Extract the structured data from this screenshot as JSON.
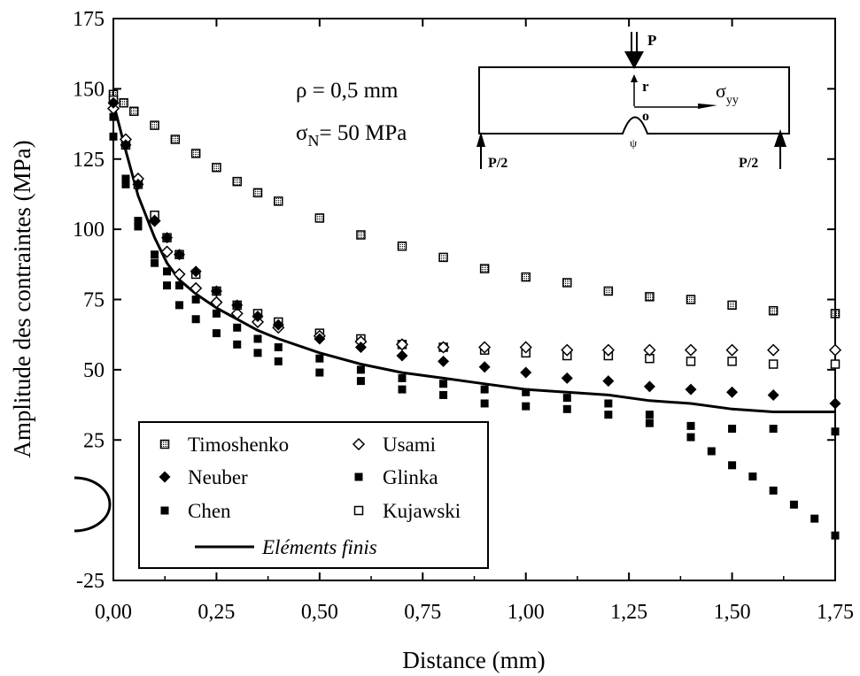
{
  "chart_data": {
    "type": "scatter",
    "title": "",
    "xlabel": "Distance (mm)",
    "ylabel": "Amplitude des contraintes  (MPa)",
    "xlim": [
      0,
      1.75
    ],
    "ylim": [
      -25,
      175
    ],
    "xticks": [
      0,
      0.25,
      0.5,
      0.75,
      1.0,
      1.25,
      1.5,
      1.75
    ],
    "xtick_labels": [
      "0,00",
      "0,25",
      "0,50",
      "0,75",
      "1,00",
      "1,25",
      "1,50",
      "1,75"
    ],
    "yticks": [
      -25,
      25,
      50,
      75,
      100,
      125,
      150,
      175
    ],
    "ytick_labels": [
      "-25",
      "25",
      "50",
      "75",
      "100",
      "125",
      "150",
      "175"
    ],
    "grid": false,
    "legend_position": "bottom-left",
    "annotations": {
      "rho": "ρ = 0,5 mm",
      "sigma_n_symbol": "σ",
      "sigma_n_sub": "N",
      "sigma_n_value": "= 50 MPa"
    },
    "inset": {
      "load_P": "P",
      "support_left": "P/2",
      "support_right": "P/2",
      "r_label": "r",
      "o_label": "o",
      "psi_label": "ψ",
      "sigma_label": "σ",
      "sigma_sub": "yy"
    },
    "series": [
      {
        "name": "Timoshenko",
        "marker": "dotted-square",
        "x": [
          0.0,
          0.025,
          0.05,
          0.1,
          0.15,
          0.2,
          0.25,
          0.3,
          0.35,
          0.4,
          0.5,
          0.6,
          0.7,
          0.8,
          0.9,
          1.0,
          1.1,
          1.2,
          1.3,
          1.4,
          1.5,
          1.6,
          1.75
        ],
        "y": [
          148,
          145,
          142,
          137,
          132,
          127,
          122,
          117,
          113,
          110,
          104,
          98,
          94,
          90,
          86,
          83,
          81,
          78,
          76,
          75,
          73,
          71,
          70
        ]
      },
      {
        "name": "Usami",
        "marker": "open-diamond",
        "x": [
          0.0,
          0.03,
          0.06,
          0.1,
          0.13,
          0.16,
          0.2,
          0.25,
          0.3,
          0.35,
          0.4,
          0.5,
          0.6,
          0.7,
          0.8,
          0.9,
          1.0,
          1.1,
          1.2,
          1.3,
          1.4,
          1.5,
          1.6,
          1.75
        ],
        "y": [
          143,
          132,
          118,
          103,
          92,
          84,
          79,
          74,
          70,
          67,
          65,
          62,
          60,
          59,
          58,
          58,
          58,
          57,
          57,
          57,
          57,
          57,
          57,
          57
        ]
      },
      {
        "name": "Neuber",
        "marker": "filled-diamond",
        "x": [
          0.0,
          0.03,
          0.06,
          0.1,
          0.13,
          0.16,
          0.2,
          0.25,
          0.3,
          0.35,
          0.4,
          0.5,
          0.6,
          0.7,
          0.8,
          0.9,
          1.0,
          1.1,
          1.2,
          1.3,
          1.4,
          1.5,
          1.6,
          1.75
        ],
        "y": [
          145,
          130,
          116,
          103,
          97,
          91,
          85,
          78,
          73,
          69,
          66,
          61,
          58,
          55,
          53,
          51,
          49,
          47,
          46,
          44,
          43,
          42,
          41,
          38
        ]
      },
      {
        "name": "Glinka",
        "marker": "filled-square",
        "x": [
          0.0,
          0.03,
          0.06,
          0.1,
          0.13,
          0.16,
          0.2,
          0.25,
          0.3,
          0.35,
          0.4,
          0.5,
          0.6,
          0.7,
          0.8,
          0.9,
          1.0,
          1.1,
          1.2,
          1.3,
          1.4,
          1.45,
          1.5,
          1.55,
          1.6,
          1.65,
          1.7,
          1.75
        ],
        "y": [
          133,
          116,
          101,
          88,
          80,
          73,
          68,
          63,
          59,
          56,
          53,
          49,
          46,
          43,
          41,
          38,
          37,
          36,
          34,
          31,
          26,
          21,
          16,
          12,
          7,
          2,
          -3,
          -9
        ]
      },
      {
        "name": "Chen",
        "marker": "filled-square",
        "x": [
          0.0,
          0.03,
          0.06,
          0.1,
          0.13,
          0.16,
          0.2,
          0.25,
          0.3,
          0.35,
          0.4,
          0.5,
          0.6,
          0.7,
          0.8,
          0.9,
          1.0,
          1.1,
          1.2,
          1.3,
          1.4,
          1.5,
          1.6,
          1.75
        ],
        "y": [
          140,
          118,
          103,
          91,
          85,
          80,
          75,
          70,
          65,
          61,
          58,
          54,
          50,
          47,
          45,
          43,
          42,
          40,
          38,
          34,
          30,
          29,
          29,
          28
        ]
      },
      {
        "name": "Kujawski",
        "marker": "open-square",
        "x": [
          0.0,
          0.03,
          0.06,
          0.1,
          0.13,
          0.16,
          0.2,
          0.25,
          0.3,
          0.35,
          0.4,
          0.5,
          0.6,
          0.7,
          0.8,
          0.9,
          1.0,
          1.1,
          1.2,
          1.3,
          1.4,
          1.5,
          1.6,
          1.75
        ],
        "y": [
          146,
          130,
          116,
          105,
          97,
          91,
          84,
          78,
          73,
          70,
          67,
          63,
          61,
          59,
          58,
          57,
          56,
          55,
          55,
          54,
          53,
          53,
          52,
          52
        ]
      },
      {
        "name": "Eléments finis",
        "marker": "line",
        "x": [
          0.0,
          0.03,
          0.06,
          0.1,
          0.13,
          0.16,
          0.2,
          0.25,
          0.3,
          0.35,
          0.4,
          0.5,
          0.6,
          0.7,
          0.8,
          0.9,
          1.0,
          1.1,
          1.2,
          1.3,
          1.4,
          1.5,
          1.6,
          1.75
        ],
        "y": [
          145,
          128,
          112,
          97,
          88,
          82,
          77,
          72,
          68,
          64,
          61,
          56,
          52,
          49,
          47,
          45,
          43,
          42,
          41,
          39,
          38,
          36,
          35,
          35
        ]
      }
    ]
  }
}
